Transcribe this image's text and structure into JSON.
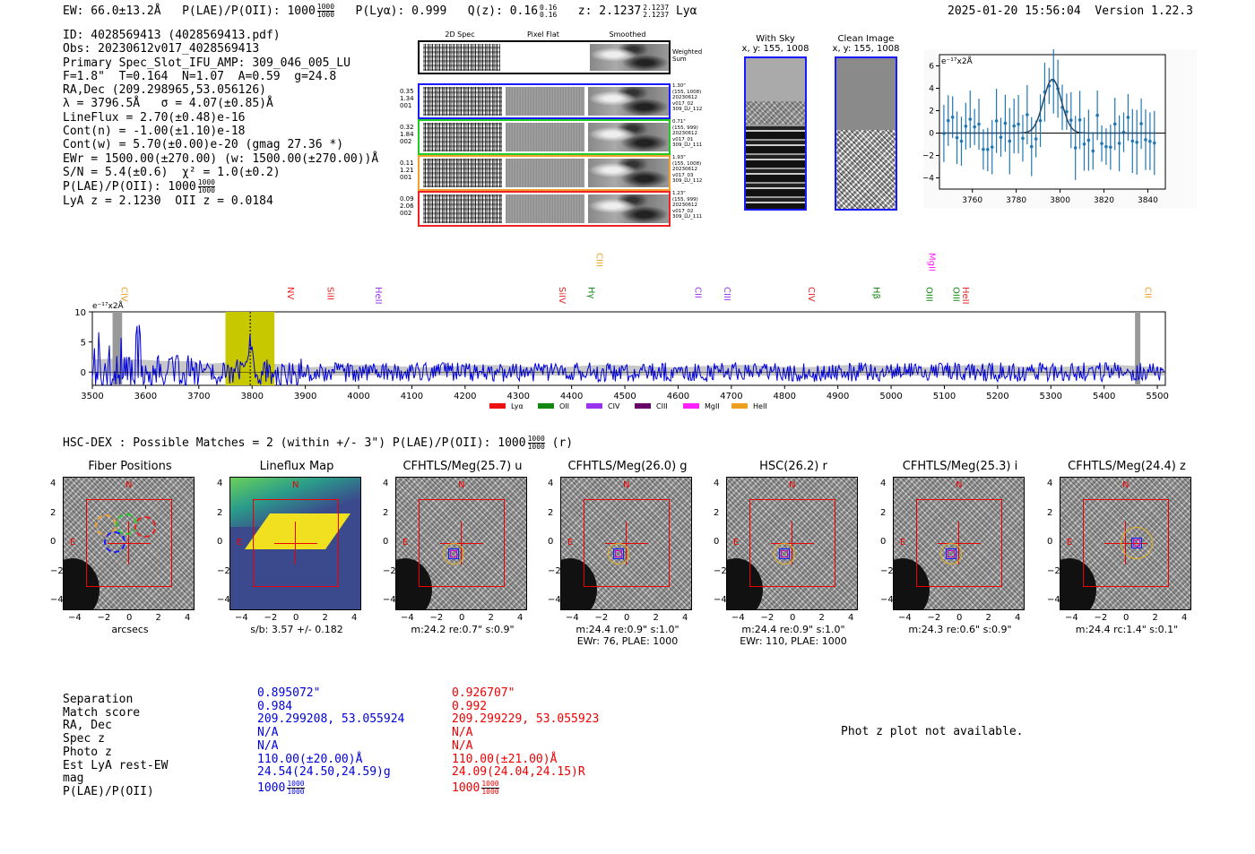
{
  "header": {
    "ew_label": "EW: 66.0±13.2Å",
    "plae_label": "P(LAE)/P(OII): 1000",
    "plae_num": "1000",
    "plae_den": "1000",
    "plya": "P(Lyα): 0.999",
    "qz_label": "Q(z): 0.16",
    "qz_num": "0.16",
    "qz_den": "0.16",
    "z_label": "z: 2.1237",
    "z_num": "2.1237",
    "z_den": "2.1237",
    "line": "Lyα",
    "timestamp": "2025-01-20 15:56:04",
    "version": "Version 1.22.3"
  },
  "info": {
    "lines": [
      "ID: 4028569413 (4028569413.pdf)",
      "Obs: 20230612v017_4028569413",
      "Primary Spec_Slot_IFU_AMP: 309_046_005_LU",
      "F=1.8\"  T=0.164  N=1.07  A=0.59  g=24.8",
      "RA,Dec (209.298965,53.056126)",
      "λ = 3796.5Å   σ = 4.07(±0.85)Å",
      "LineFlux = 2.70(±0.48)e-16",
      "Cont(n) = -1.00(±1.10)e-18",
      "Cont(w) = 5.70(±0.00)e-20 (gmag 27.36 *)",
      "EWr = 1500.00(±270.00) (w: 1500.00(±270.00))Å",
      "S/N = 5.4(±0.6)  χ² = 1.0(±0.2)"
    ],
    "plae_line": "P(LAE)/P(OII): 1000",
    "plae_num": "1000",
    "plae_den": "1000",
    "z_line": "LyA z = 2.1230  OII z = 0.0184"
  },
  "spec2d": {
    "col_titles": [
      "2D Spec",
      "Pixel Flat",
      "Smoothed"
    ],
    "weighted_label": "Weighted\nSum",
    "rows": [
      {
        "left": "0.35\n1.34\n001",
        "right": "1.30\"\n(155, 1008)\n20230612\nv017_02\n309_LU_112",
        "color": "#1a1aff"
      },
      {
        "left": "0.32\n1.84\n002",
        "right": "0.71\"\n(155, 999)\n20230612\nv017_01\n309_LU_111",
        "color": "#22cc22"
      },
      {
        "left": "0.11\n1.21\n001",
        "right": "1.93\"\n(155, 1008)\n20230612\nv017_03\n309_LU_112",
        "color": "#f0a030"
      },
      {
        "left": "0.09\n2.06\n002",
        "right": "1.23\"\n(155, 999)\n20230612\nv017_02\n309_LU_111",
        "color": "#ee2222"
      }
    ]
  },
  "sky": {
    "with_sky_title": "With Sky",
    "with_sky_xy": "x, y: 155, 1008",
    "clean_title": "Clean Image",
    "clean_xy": "x, y: 155, 1008"
  },
  "zoom_chart": {
    "ylabel": "e⁻¹⁷x2Å",
    "xticks": [
      "3760",
      "3780",
      "3800",
      "3820",
      "3840"
    ],
    "yticks": [
      "6",
      "4",
      "2",
      "0",
      "−2",
      "−4"
    ]
  },
  "full_spec": {
    "ylabel": "e⁻¹⁷x2Å",
    "yticks": [
      "10",
      "5",
      "0"
    ],
    "xticks": [
      "3500",
      "3600",
      "3700",
      "3800",
      "3900",
      "4000",
      "4100",
      "4200",
      "4300",
      "4400",
      "4500",
      "4600",
      "4700",
      "4800",
      "4900",
      "5000",
      "5100",
      "5200",
      "5300",
      "5400",
      "5500"
    ],
    "lines": [
      {
        "label": "CIV",
        "color": "#f0a020",
        "wave": 3548
      },
      {
        "label": "NV",
        "color": "#ee2222",
        "wave": 3860
      },
      {
        "label": "SiII",
        "color": "#ee2222",
        "wave": 3935
      },
      {
        "label": "HeII",
        "color": "#9933ee",
        "wave": 4025
      },
      {
        "label": "SiIV",
        "color": "#ee2222",
        "wave": 4370
      },
      {
        "label": "CIII",
        "color": "#f0a020",
        "wave": 4440
      },
      {
        "label": "Hγ",
        "color": "#118811",
        "wave": 4425
      },
      {
        "label": "CII",
        "color": "#9933ee",
        "wave": 4625
      },
      {
        "label": "CIII",
        "color": "#9933ee",
        "wave": 4680
      },
      {
        "label": "CIV",
        "color": "#ee2222",
        "wave": 4838
      },
      {
        "label": "Hβ",
        "color": "#118811",
        "wave": 4960
      },
      {
        "label": "OIII",
        "color": "#118811",
        "wave": 5060
      },
      {
        "label": "MgII",
        "color": "#ff22ff",
        "wave": 5065
      },
      {
        "label": "OIII",
        "color": "#118811",
        "wave": 5110
      },
      {
        "label": "HeII",
        "color": "#ee2222",
        "wave": 5128
      },
      {
        "label": "CII",
        "color": "#f0a020",
        "wave": 5470
      }
    ],
    "legend": [
      {
        "label": "Lyα",
        "color": "#ee1111"
      },
      {
        "label": "OII",
        "color": "#118811"
      },
      {
        "label": "CIV",
        "color": "#9933ee"
      },
      {
        "label": "CIII",
        "color": "#660066"
      },
      {
        "label": "MgII",
        "color": "#ff22ff"
      },
      {
        "label": "HeII",
        "color": "#f0a020"
      }
    ]
  },
  "hsc": {
    "title": "HSC-DEX : Possible Matches = 2 (within +/- 3\")  P(LAE)/P(OII): 1000",
    "num": "1000",
    "den": "1000",
    "suffix": "(r)"
  },
  "cutouts": [
    {
      "title": "Fiber Positions",
      "sub1": "arcsecs",
      "sub2": ""
    },
    {
      "title": "Lineflux Map",
      "sub1": "s/b: 3.57 +/- 0.182",
      "sub2": ""
    },
    {
      "title": "CFHTLS/Meg(25.7) u",
      "sub1": "m:24.2  re:0.7\"  s:0.9\"",
      "sub2": ""
    },
    {
      "title": "CFHTLS/Meg(26.0) g",
      "sub1": "m:24.4  re:0.9\"  s:1.0\"",
      "sub2": "EWr: 76, PLAE: 1000"
    },
    {
      "title": "HSC(26.2) r",
      "sub1": "m:24.4  re:0.9\"  s:1.0\"",
      "sub2": "EWr: 110, PLAE: 1000"
    },
    {
      "title": "CFHTLS/Meg(25.3) i",
      "sub1": "m:24.3  re:0.6\"  s:0.9\"",
      "sub2": ""
    },
    {
      "title": "CFHTLS/Meg(24.4) z",
      "sub1": "m:24.4 rc:1.4\"  s:0.1\"",
      "sub2": ""
    }
  ],
  "cutout_axis": {
    "ticks": [
      "4",
      "2",
      "0",
      "−2",
      "−4"
    ],
    "xticks": [
      "−4",
      "−2",
      "0",
      "2",
      "4"
    ],
    "n": "N",
    "e": "E"
  },
  "matches": {
    "labels": [
      "Separation",
      "Match score",
      "RA, Dec",
      "Spec z",
      "Photo z",
      "Est LyA rest-EW",
      "mag",
      "P(LAE)/P(OII)"
    ],
    "m1": [
      "0.895072\"",
      "0.984",
      "209.299208, 53.055924",
      "N/A",
      "N/A",
      "110.00(±20.00)Å",
      "24.54(24.50,24.59)g",
      "1000"
    ],
    "m2": [
      "0.926707\"",
      "0.992",
      "209.299229, 53.055923",
      "N/A",
      "N/A",
      "110.00(±21.00)Å",
      "24.09(24.04,24.15)R",
      "1000"
    ],
    "m1_frac": {
      "num": "1000",
      "den": "1000"
    },
    "m2_frac": {
      "num": "1000",
      "den": "1000"
    }
  },
  "photz_msg": "Phot z plot not available."
}
